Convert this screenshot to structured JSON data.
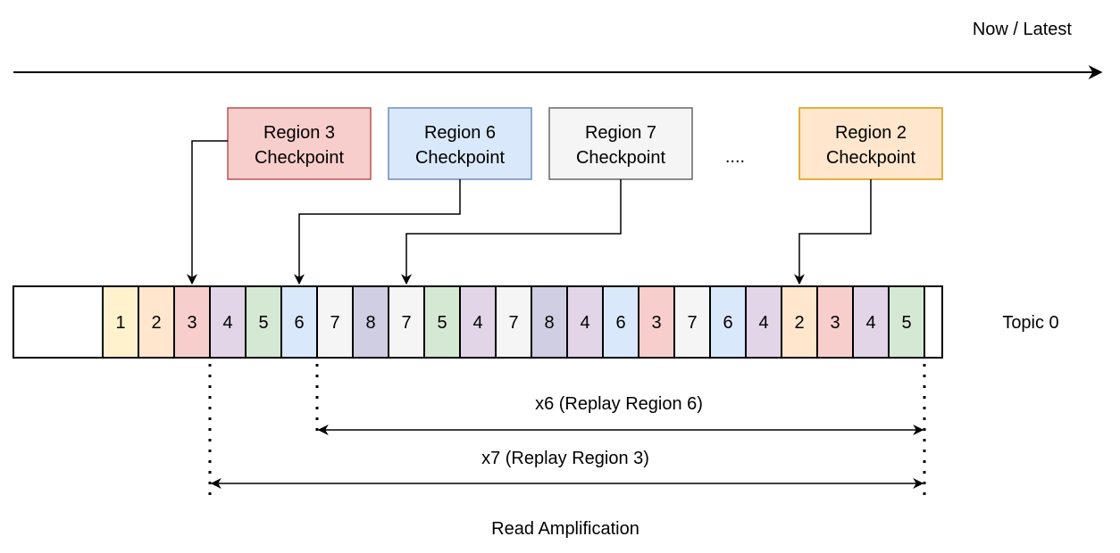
{
  "timeline_label": "Now / Latest",
  "checkpoints": [
    {
      "line1": "Region 3",
      "line2": "Checkpoint",
      "fill": "#f8cecc",
      "stroke": "#b85450",
      "text": "#000000"
    },
    {
      "line1": "Region 6",
      "line2": "Checkpoint",
      "fill": "#dae8fc",
      "stroke": "#6c8ebf",
      "text": "#000000"
    },
    {
      "line1": "Region 7",
      "line2": "Checkpoint",
      "fill": "#f5f5f5",
      "stroke": "#666666",
      "text": "#333333"
    },
    {
      "line1": "Region 2",
      "line2": "Checkpoint",
      "fill": "#ffe6cc",
      "stroke": "#d79b00",
      "text": "#000000"
    }
  ],
  "ellipsis": "....",
  "topic_label": "Topic 0",
  "region_colors": {
    "1": "#fff2cc",
    "2": "#ffe6cc",
    "3": "#f8cecc",
    "4": "#e1d5e7",
    "5": "#d5e8d4",
    "6": "#dae8fc",
    "7": "#f5f5f5",
    "8": "#d0cee2"
  },
  "log_entries": [
    "1",
    "2",
    "3",
    "4",
    "5",
    "6",
    "7",
    "8",
    "7",
    "5",
    "4",
    "7",
    "8",
    "4",
    "6",
    "3",
    "7",
    "6",
    "4",
    "2",
    "3",
    "4",
    "5"
  ],
  "replay_6_label": "x6 (Replay Region 6)",
  "replay_3_label": "x7 (Replay Region 3)",
  "footer_label": "Read Amplification"
}
